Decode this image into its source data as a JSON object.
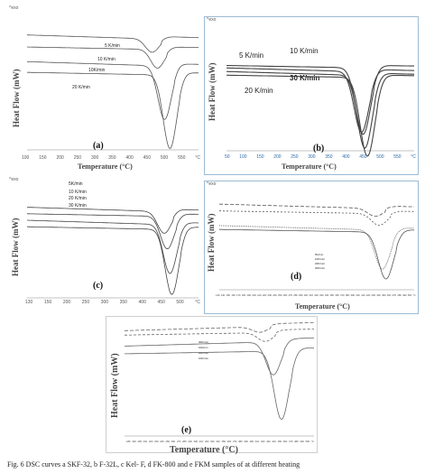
{
  "figure": {
    "caption": "Fig. 6  DSC curves a SKF-32, b F-32L, c Kel- F, d FK-800 and e FKM samples of at different heating"
  },
  "chart_data": [
    {
      "id": "a",
      "type": "line",
      "label": "(a)",
      "exo_mark": "^exo",
      "ylabel": "Heat Flow (mW)",
      "xlabel": "Temperature (°C)",
      "xticks": [
        "100",
        "150",
        "200",
        "250",
        "300",
        "350",
        "400",
        "450",
        "500",
        "550",
        "°C"
      ],
      "xlim": [
        80,
        560
      ],
      "series": [
        {
          "name": "5 K/min",
          "peak_x": 430,
          "peak_depth": 0.1,
          "baseline": 0.14
        },
        {
          "name": "10 K/min",
          "peak_x": 445,
          "peak_depth": 0.14,
          "baseline": 0.23
        },
        {
          "name": "10K/min",
          "peak_x": 465,
          "peak_depth": 0.4,
          "baseline": 0.34
        },
        {
          "name": "20 K/min",
          "peak_x": 480,
          "peak_depth": 0.55,
          "baseline": 0.42
        }
      ]
    },
    {
      "id": "b",
      "type": "line",
      "label": "(b)",
      "exo_mark": "^exo",
      "ylabel": "Heat Flow (mW)",
      "xlabel": "Temperature (°C)",
      "xticks": [
        "50",
        "100",
        "150",
        "200",
        "250",
        "300",
        "350",
        "400",
        "450",
        "500",
        "550",
        "°C"
      ],
      "xlim": [
        30,
        600
      ],
      "series": [
        {
          "name": "5 K/min",
          "peak_x": 440,
          "peak_depth": 0.5,
          "baseline": 0.33
        },
        {
          "name": "10 K/min",
          "peak_x": 445,
          "peak_depth": 0.55,
          "baseline": 0.31
        },
        {
          "name": "20 K/min",
          "peak_x": 450,
          "peak_depth": 0.6,
          "baseline": 0.36
        },
        {
          "name": "30 K/min",
          "peak_x": 458,
          "peak_depth": 0.65,
          "baseline": 0.39
        }
      ]
    },
    {
      "id": "c",
      "type": "line",
      "label": "(c)",
      "exo_mark": "^exo",
      "ylabel": "Heat Flow (mW)",
      "xlabel": "Temperature (°C)",
      "xticks": [
        "130",
        "150",
        "200",
        "250",
        "300",
        "350",
        "400",
        "450",
        "500",
        "°C"
      ],
      "xlim": [
        110,
        560
      ],
      "series": [
        {
          "name": "5K/min",
          "peak_x": 470,
          "peak_depth": 0.2,
          "baseline": 0.18
        },
        {
          "name": "10 K/min",
          "peak_x": 478,
          "peak_depth": 0.3,
          "baseline": 0.24
        },
        {
          "name": "20 K/min",
          "peak_x": 485,
          "peak_depth": 0.45,
          "baseline": 0.3
        },
        {
          "name": "30 K/min",
          "peak_x": 490,
          "peak_depth": 0.6,
          "baseline": 0.36
        }
      ]
    },
    {
      "id": "d",
      "type": "line",
      "label": "(d)",
      "exo_mark": "^exo",
      "ylabel": "Heat Flow (mW)",
      "xlabel": "Temperature (°C)",
      "xticks": [
        "130",
        "140",
        "150",
        "160",
        "170",
        "180",
        "190",
        "200",
        "210",
        "220",
        "230",
        "240",
        "250",
        "260",
        "270",
        "280",
        "290",
        "300",
        "310",
        "320",
        "330",
        "340",
        "350",
        "360",
        "370",
        "380",
        "390",
        "400",
        "410",
        "420",
        "430",
        "440",
        "450",
        "460",
        "470",
        "480",
        "490",
        "500",
        "°C"
      ],
      "xlim": [
        120,
        520
      ],
      "series": [
        {
          "name": "5K/min",
          "peak_x": 440,
          "peak_depth": 0.08,
          "baseline": 0.14
        },
        {
          "name": "10K/min",
          "peak_x": 448,
          "peak_depth": 0.12,
          "baseline": 0.21
        },
        {
          "name": "20K/min",
          "peak_x": 455,
          "peak_depth": 0.4,
          "baseline": 0.36
        },
        {
          "name": "30K/min",
          "peak_x": 462,
          "peak_depth": 0.48,
          "baseline": 0.4
        }
      ]
    },
    {
      "id": "e",
      "type": "line",
      "label": "(e)",
      "exo_mark": "",
      "ylabel": "Heat Flow (mW)",
      "xlabel": "Temperature (°C)",
      "xticks": [
        "180",
        "190",
        "200",
        "210",
        "220",
        "230",
        "240",
        "250",
        "260",
        "270",
        "280",
        "290",
        "300",
        "310",
        "320",
        "330",
        "340",
        "350",
        "360",
        "370",
        "380",
        "390",
        "400",
        "410",
        "420",
        "430",
        "440",
        "450",
        "460",
        "470",
        "480",
        "490",
        "500",
        "°C"
      ],
      "xlim": [
        170,
        520
      ],
      "series": [
        {
          "name": "30K/min",
          "peak_x": 420,
          "peak_depth": 0.05,
          "baseline": 0.06
        },
        {
          "name": "10k/min",
          "peak_x": 430,
          "peak_depth": 0.08,
          "baseline": 0.1
        },
        {
          "name": "20K/min",
          "peak_x": 445,
          "peak_depth": 0.3,
          "baseline": 0.2
        },
        {
          "name": "10K/min",
          "peak_x": 460,
          "peak_depth": 0.62,
          "baseline": 0.27
        }
      ]
    }
  ]
}
